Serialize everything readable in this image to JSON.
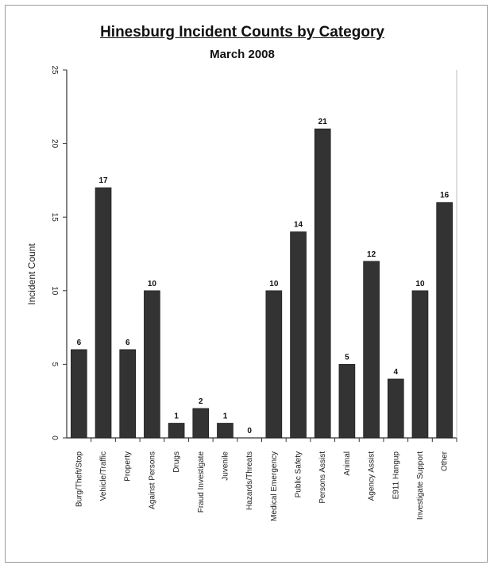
{
  "chart_data": {
    "type": "bar",
    "title": "Hinesburg Incident Counts by Category",
    "subtitle": "March 2008",
    "xlabel": "",
    "ylabel": "Incident Count",
    "ylim": [
      0,
      25
    ],
    "yticks": [
      0,
      5,
      10,
      15,
      20,
      25
    ],
    "grid": false,
    "legend": "none",
    "bar_color": "#333333",
    "categories": [
      "Burg/Theft/Stop",
      "Vehicle/Traffic",
      "Property",
      "Against Persons",
      "Drugs",
      "Fraud Investigate",
      "Juvenile",
      "Hazards/Threats",
      "Medical Emergency",
      "Public Safety",
      "Persons Assist",
      "Animal",
      "Agency Assist",
      "E911 Hangup",
      "Investigate Support",
      "Other"
    ],
    "values": [
      6,
      17,
      6,
      10,
      1,
      2,
      1,
      0,
      10,
      14,
      21,
      5,
      12,
      4,
      10,
      16
    ]
  }
}
